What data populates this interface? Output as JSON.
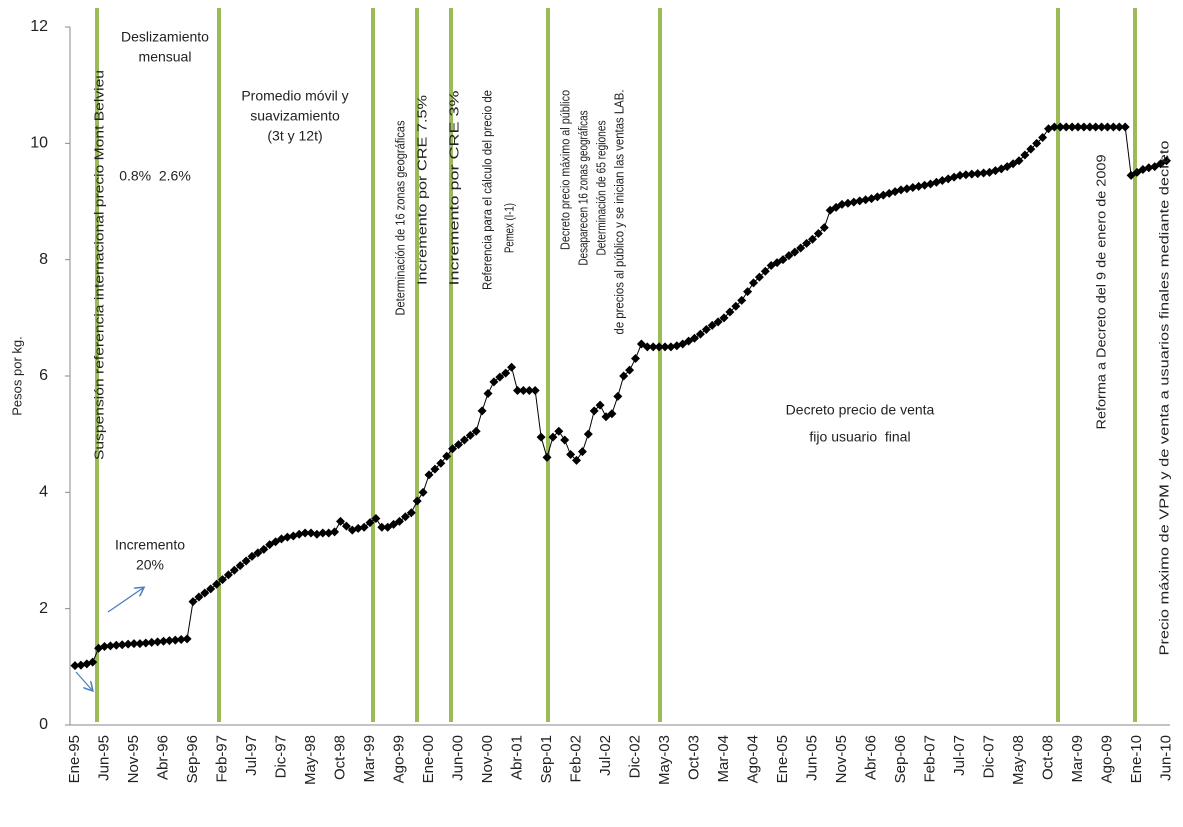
{
  "chart_data": {
    "type": "line",
    "y_label": "Pesos por kg.",
    "color": "#000000",
    "ylim": [
      0,
      12
    ],
    "yticks": [
      0,
      2,
      4,
      6,
      8,
      10,
      12
    ],
    "grid": false,
    "categories": [
      "Ene-95",
      null,
      null,
      null,
      null,
      "Jun-95",
      null,
      null,
      null,
      null,
      "Nov-95",
      null,
      null,
      null,
      null,
      "Abr-96",
      null,
      null,
      null,
      null,
      "Sep-96",
      null,
      null,
      null,
      null,
      "Feb-97",
      null,
      null,
      null,
      null,
      "Jul-97",
      null,
      null,
      null,
      null,
      "Dic-97",
      null,
      null,
      null,
      null,
      "May-98",
      null,
      null,
      null,
      null,
      "Oct-98",
      null,
      null,
      null,
      null,
      "Mar-99",
      null,
      null,
      null,
      null,
      "Ago-99",
      null,
      null,
      null,
      null,
      "Ene-00",
      null,
      null,
      null,
      null,
      "Jun-00",
      null,
      null,
      null,
      null,
      "Nov-00",
      null,
      null,
      null,
      null,
      "Abr-01",
      null,
      null,
      null,
      null,
      "Sep-01",
      null,
      null,
      null,
      null,
      "Feb-02",
      null,
      null,
      null,
      null,
      "Jul-02",
      null,
      null,
      null,
      null,
      "Dic-02",
      null,
      null,
      null,
      null,
      "May-03",
      null,
      null,
      null,
      null,
      "Oct-03",
      null,
      null,
      null,
      null,
      "Mar-04",
      null,
      null,
      null,
      null,
      "Ago-04",
      null,
      null,
      null,
      null,
      "Ene-05",
      null,
      null,
      null,
      null,
      "Jun-05",
      null,
      null,
      null,
      null,
      "Nov-05",
      null,
      null,
      null,
      null,
      "Abr-06",
      null,
      null,
      null,
      null,
      "Sep-06",
      null,
      null,
      null,
      null,
      "Feb-07",
      null,
      null,
      null,
      null,
      "Jul-07",
      null,
      null,
      null,
      null,
      "Dic-07",
      null,
      null,
      null,
      null,
      "May-08",
      null,
      null,
      null,
      null,
      "Oct-08",
      null,
      null,
      null,
      null,
      "Mar-09",
      null,
      null,
      null,
      null,
      "Ago-09",
      null,
      null,
      null,
      null,
      "Ene-10",
      null,
      null,
      null,
      null,
      "Jun-10"
    ],
    "values": [
      1.02,
      1.03,
      1.05,
      1.08,
      1.32,
      1.35,
      1.36,
      1.37,
      1.38,
      1.39,
      1.4,
      1.4,
      1.41,
      1.42,
      1.43,
      1.44,
      1.45,
      1.46,
      1.47,
      1.48,
      2.12,
      2.2,
      2.27,
      2.34,
      2.42,
      2.5,
      2.58,
      2.66,
      2.74,
      2.82,
      2.9,
      2.96,
      3.02,
      3.1,
      3.15,
      3.2,
      3.23,
      3.25,
      3.28,
      3.3,
      3.3,
      3.28,
      3.3,
      3.3,
      3.32,
      3.5,
      3.42,
      3.35,
      3.38,
      3.4,
      3.48,
      3.55,
      3.4,
      3.4,
      3.45,
      3.5,
      3.58,
      3.65,
      3.85,
      4.0,
      4.3,
      4.4,
      4.5,
      4.62,
      4.75,
      4.82,
      4.9,
      4.98,
      5.05,
      5.4,
      5.7,
      5.9,
      5.98,
      6.05,
      6.15,
      5.75,
      5.75,
      5.75,
      5.75,
      4.95,
      4.6,
      4.95,
      5.05,
      4.9,
      4.65,
      4.55,
      4.7,
      5.0,
      5.4,
      5.5,
      5.3,
      5.35,
      5.65,
      6.0,
      6.1,
      6.3,
      6.55,
      6.5,
      6.5,
      6.5,
      6.5,
      6.5,
      6.52,
      6.55,
      6.6,
      6.65,
      6.72,
      6.8,
      6.87,
      6.93,
      7.0,
      7.1,
      7.2,
      7.3,
      7.45,
      7.6,
      7.7,
      7.8,
      7.9,
      7.95,
      8.0,
      8.07,
      8.13,
      8.2,
      8.28,
      8.35,
      8.45,
      8.55,
      8.85,
      8.9,
      8.95,
      8.97,
      8.99,
      9.01,
      9.03,
      9.05,
      9.08,
      9.11,
      9.14,
      9.17,
      9.2,
      9.22,
      9.24,
      9.26,
      9.28,
      9.3,
      9.33,
      9.36,
      9.39,
      9.42,
      9.45,
      9.46,
      9.47,
      9.48,
      9.49,
      9.5,
      9.53,
      9.56,
      9.6,
      9.65,
      9.7,
      9.8,
      9.9,
      10.0,
      10.1,
      10.25,
      10.28,
      10.28,
      10.28,
      10.28,
      10.28,
      10.28,
      10.28,
      10.28,
      10.28,
      10.28,
      10.28,
      10.28,
      10.28,
      9.45,
      9.5,
      9.55,
      9.58,
      9.6,
      9.65,
      9.7
    ],
    "annotations": [
      "Deslizamiento",
      "mensual",
      "Promedio móvil y",
      "suavizamiento",
      "(3t y 12t)",
      "0.8%  2.6%",
      "Incremento",
      "20%",
      "Suspensión referencia internacional precio Mont Belvieu",
      "Determinación de 16 zonas geográficas",
      "Incremento por CRE 7.5%",
      "Incremento por CRE 3%",
      "Referencia para el cálculo del precio de",
      "Pemex (I-1)",
      "Decreto precio máximo al público",
      "Desaparecen 16 zonas geográficas",
      "Determinación de 65 regiones",
      "de precios al público y se inician las ventas LAB.",
      "Decreto precio de venta",
      "fijo usuario  final",
      "Reforma a Decreto del 9 de enero de 2009",
      "Precio máximo de VPM y de venta a usuarios finales mediante decreto"
    ]
  }
}
